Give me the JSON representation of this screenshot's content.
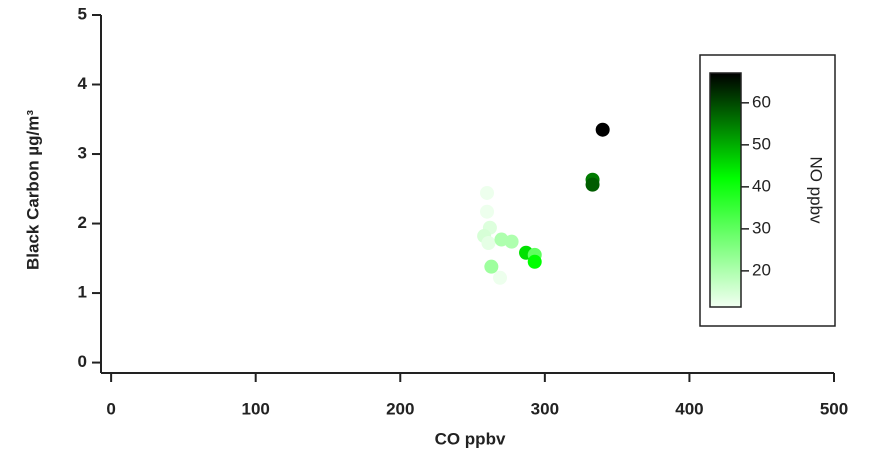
{
  "chart_data": {
    "type": "scatter",
    "xlabel": "CO ppbv",
    "ylabel": "Black Carbon µg/m³",
    "xlim": [
      -7,
      500
    ],
    "xticks": [
      0,
      100,
      200,
      300,
      400,
      500
    ],
    "ylim": [
      -0.15,
      5
    ],
    "yticks": [
      0,
      1,
      2,
      3,
      4,
      5
    ],
    "series": [
      {
        "x": [
          260,
          260,
          262,
          258,
          261,
          270,
          277,
          287,
          293,
          293,
          263,
          269,
          333,
          333,
          340
        ],
        "values": [
          2.44,
          2.17,
          1.94,
          1.82,
          1.72,
          1.77,
          1.74,
          1.58,
          1.55,
          1.45,
          1.38,
          1.22,
          2.63,
          2.56,
          3.35
        ],
        "color_values": [
          12,
          12,
          14,
          15,
          13,
          20,
          20,
          45,
          30,
          42,
          22,
          12,
          55,
          58,
          68
        ]
      }
    ],
    "colorbar": {
      "label": "NO ppbv",
      "lim": [
        11.4,
        67.1
      ],
      "ticks": [
        20,
        30,
        40,
        50,
        60
      ],
      "colors": [
        "#f2fff2",
        "#00ff00",
        "#000000"
      ],
      "stops": [
        0,
        0.55,
        1
      ]
    }
  }
}
